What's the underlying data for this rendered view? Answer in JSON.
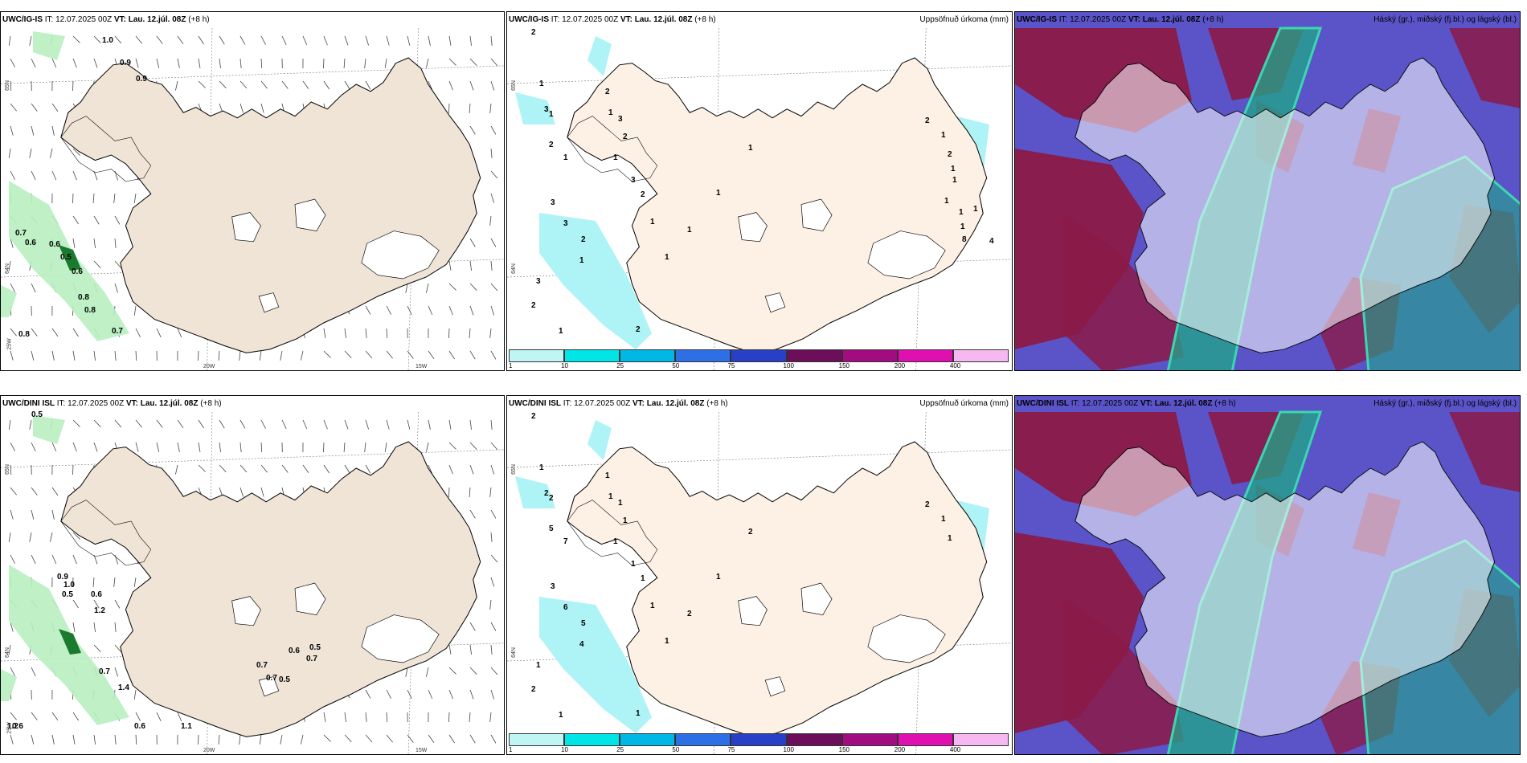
{
  "panels": [
    {
      "model": "UWC/IG-IS",
      "it": "IT: 12.07.2025 00Z",
      "vt_label": "VT:",
      "vt": "Lau. 12.júl. 08Z",
      "lead": "(+8 h)",
      "right": "",
      "type": "wind",
      "values": [
        "1.0",
        "0.9",
        "0.9",
        "0.7",
        "0.6",
        "0.6",
        "0.5",
        "0.6",
        "0.8",
        "0.8",
        "0.7",
        "0.8"
      ],
      "grid": [
        "65N",
        "64N",
        "25W",
        "20W",
        "15W"
      ]
    },
    {
      "model": "UWC/IG-IS",
      "it": "IT: 12.07.2025 00Z",
      "vt_label": "VT:",
      "vt": "Lau. 12.júl. 08Z",
      "lead": "(+8 h)",
      "right": "Uppsöfnuð úrkoma (mm)",
      "type": "precip",
      "values": [
        "2",
        "1",
        "3",
        "1",
        "2",
        "1",
        "3",
        "3",
        "2",
        "1",
        "3",
        "2",
        "1",
        "2",
        "2",
        "1",
        "3",
        "2",
        "1",
        "3",
        "2",
        "1",
        "1",
        "1",
        "1",
        "1",
        "2",
        "1",
        "2",
        "1",
        "1",
        "1",
        "1",
        "1",
        "8",
        "1",
        "4"
      ],
      "grid": [
        "65N",
        "64N"
      ]
    },
    {
      "model": "UWC/IG-IS",
      "it": "IT: 12.07.2025 00Z",
      "vt_label": "VT:",
      "vt": "Lau. 12.júl. 08Z",
      "lead": "(+8 h)",
      "right": "Háský (gr.), miðský (fj.bl.) og lágský (bl.)",
      "type": "cloud"
    },
    {
      "model": "UWC/DINI ISL",
      "it": "IT: 12.07.2025 00Z",
      "vt_label": "VT:",
      "vt": "Lau. 12.júl. 08Z",
      "lead": "(+8 h)",
      "right": "",
      "type": "wind",
      "values": [
        "0.5",
        "0.9",
        "1.0",
        "0.5",
        "0.6",
        "1.2",
        "0.7",
        "1.4",
        "0.6",
        "0.5",
        "0.7",
        "0.7",
        "0.7",
        "0.5",
        "0.6",
        "1.2",
        "1.1",
        "0.6"
      ],
      "grid": [
        "65N",
        "64N",
        "25W",
        "20W",
        "15W"
      ]
    },
    {
      "model": "UWC/DINI ISL",
      "it": "IT: 12.07.2025 00Z",
      "vt_label": "VT:",
      "vt": "Lau. 12.júl. 08Z",
      "lead": "(+8 h)",
      "right": "Uppsöfnuð úrkoma (mm)",
      "type": "precip",
      "values": [
        "2",
        "1",
        "2",
        "2",
        "5",
        "7",
        "3",
        "6",
        "5",
        "4",
        "1",
        "2",
        "1",
        "1",
        "1",
        "1",
        "1",
        "1",
        "1",
        "1",
        "1",
        "1",
        "1",
        "2",
        "1",
        "2",
        "2",
        "1",
        "1"
      ],
      "grid": [
        "65N",
        "64N"
      ]
    },
    {
      "model": "UWC/DINI ISL",
      "it": "IT: 12.07.2025 00Z",
      "vt_label": "VT:",
      "vt": "Lau. 12.júl. 08Z",
      "lead": "(+8 h)",
      "right": "Háský (gr.), miðský (fj.bl.) og lágský (bl.)",
      "type": "cloud"
    }
  ],
  "colorbar": {
    "ticks": [
      "1",
      "10",
      "25",
      "50",
      "75",
      "100",
      "150",
      "200",
      "400"
    ],
    "colors": [
      "#bff5f5",
      "#00e5e5",
      "#00b8e6",
      "#2f6fe6",
      "#2a3fc8",
      "#6b0f5a",
      "#a10c80",
      "#e010b0",
      "#f5b8f0"
    ]
  },
  "colors": {
    "land": "#efe4d6",
    "land_precip": "#fdf0e4",
    "wind_green": "#b8eec0",
    "dark_green": "#1a7a2e",
    "precip": "#aef3f5",
    "cloud_blue": "#5a54c8",
    "cloud_red": "#8b1a48",
    "cloud_green": "#1fa88a",
    "cloud_teal": "#3dd6b0"
  }
}
